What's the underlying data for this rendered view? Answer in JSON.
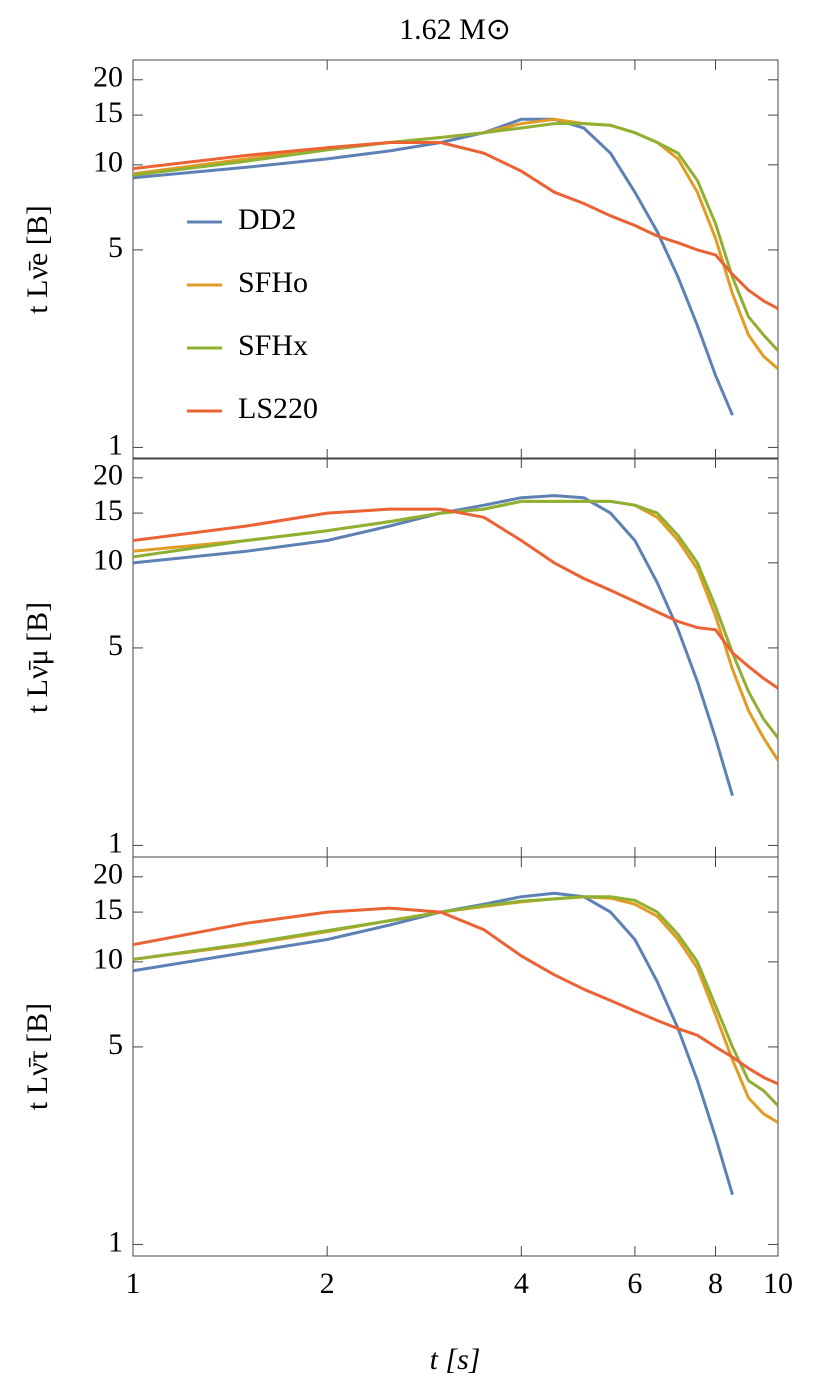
{
  "chart_data": [
    {
      "type": "line",
      "title": "1.62 M⊙",
      "ylabel": "t Lν̄e [B]",
      "log_x": true,
      "log_y": true,
      "x": [
        1,
        1.5,
        2,
        2.5,
        3,
        3.5,
        4,
        4.5,
        5,
        5.5,
        6,
        6.5,
        7,
        7.5,
        8,
        8.5,
        9,
        9.5,
        10
      ],
      "xlim": [
        1,
        10
      ],
      "xticks": [
        1,
        2,
        4,
        6,
        8,
        10
      ],
      "ylim": [
        0.91,
        23.5
      ],
      "yticks": [
        1,
        5,
        10,
        15,
        20
      ],
      "legend": "upper left",
      "series": [
        {
          "name": "DD2",
          "color": "#5e81b5",
          "values": [
            9,
            9.8,
            10.5,
            11.2,
            12,
            13,
            14.5,
            14.5,
            13.5,
            11,
            8,
            5.8,
            4,
            2.7,
            1.8,
            1.3,
            null,
            null,
            null
          ]
        },
        {
          "name": "SFHo",
          "color": "#e19c24",
          "values": [
            9.3,
            10.5,
            11.5,
            12,
            12.5,
            13,
            14,
            14.5,
            14,
            13.8,
            13,
            12,
            10.5,
            8,
            5.5,
            3.5,
            2.5,
            2.1,
            1.9
          ]
        },
        {
          "name": "SFHx",
          "color": "#8fb032",
          "values": [
            9.2,
            10.3,
            11.3,
            12,
            12.5,
            13,
            13.5,
            14,
            14,
            13.8,
            13,
            12,
            11,
            8.8,
            6.2,
            4,
            2.9,
            2.5,
            2.2
          ]
        },
        {
          "name": "LS220",
          "color": "#eb6235",
          "values": [
            9.7,
            10.8,
            11.5,
            12,
            12,
            11,
            9.5,
            8,
            7.3,
            6.6,
            6.1,
            5.6,
            5.3,
            5,
            4.8,
            4.1,
            3.6,
            3.3,
            3.1
          ]
        }
      ]
    },
    {
      "type": "line",
      "ylabel": "t Lν̄μ [B]",
      "log_x": true,
      "log_y": true,
      "x": [
        1,
        1.5,
        2,
        2.5,
        3,
        3.5,
        4,
        4.5,
        5,
        5.5,
        6,
        6.5,
        7,
        7.5,
        8,
        8.5,
        9,
        9.5,
        10
      ],
      "xlim": [
        1,
        10
      ],
      "xticks": [
        1,
        2,
        4,
        6,
        8,
        10
      ],
      "ylim": [
        0.91,
        23.5
      ],
      "yticks": [
        1,
        5,
        10,
        15,
        20
      ],
      "series": [
        {
          "color": "#5e81b5",
          "values": [
            10,
            11,
            12,
            13.5,
            15,
            16,
            17,
            17.3,
            17,
            15,
            12,
            8.5,
            5.8,
            3.8,
            2.4,
            1.5,
            null,
            null,
            null
          ]
        },
        {
          "color": "#e19c24",
          "values": [
            11,
            12,
            13,
            14,
            15,
            15.5,
            16.5,
            16.5,
            16.5,
            16.5,
            16,
            14.5,
            12,
            9.5,
            6.5,
            4.2,
            3,
            2.4,
            2
          ]
        },
        {
          "color": "#8fb032",
          "values": [
            10.5,
            12,
            13,
            14,
            15,
            15.5,
            16.5,
            16.5,
            16.5,
            16.5,
            16,
            15,
            12.5,
            10,
            7,
            4.8,
            3.5,
            2.8,
            2.4
          ]
        },
        {
          "color": "#eb6235",
          "values": [
            12,
            13.5,
            15,
            15.5,
            15.5,
            14.5,
            12,
            10,
            8.8,
            8,
            7.3,
            6.7,
            6.2,
            5.9,
            5.8,
            4.8,
            4.3,
            3.9,
            3.6
          ]
        }
      ]
    },
    {
      "type": "line",
      "ylabel": "t Lν̄τ [B]",
      "xlabel": "t [s]",
      "log_x": true,
      "log_y": true,
      "x": [
        1,
        1.5,
        2,
        2.5,
        3,
        3.5,
        4,
        4.5,
        5,
        5.5,
        6,
        6.5,
        7,
        7.5,
        8,
        8.5,
        9,
        9.5,
        10
      ],
      "xlim": [
        1,
        10
      ],
      "xticks": [
        1,
        2,
        4,
        6,
        8,
        10
      ],
      "ylim": [
        0.91,
        23.5
      ],
      "yticks": [
        1,
        5,
        10,
        15,
        20
      ],
      "series": [
        {
          "color": "#5e81b5",
          "values": [
            9.3,
            10.8,
            12,
            13.5,
            15,
            16,
            17,
            17.5,
            17,
            15,
            12,
            8.5,
            5.8,
            3.8,
            2.4,
            1.5,
            null,
            null,
            null
          ]
        },
        {
          "color": "#e19c24",
          "values": [
            10.2,
            11.5,
            12.8,
            14,
            15,
            15.7,
            16.3,
            16.7,
            17,
            16.8,
            16,
            14.5,
            12,
            9.5,
            6.5,
            4.5,
            3.3,
            2.9,
            2.7
          ]
        },
        {
          "color": "#8fb032",
          "values": [
            10.2,
            11.6,
            12.9,
            14,
            15,
            15.8,
            16.4,
            16.7,
            17,
            17,
            16.5,
            15,
            12.5,
            10,
            7,
            5,
            3.8,
            3.5,
            3.1
          ]
        },
        {
          "color": "#eb6235",
          "values": [
            11.5,
            13.7,
            15,
            15.5,
            15,
            13,
            10.5,
            9,
            8,
            7.3,
            6.7,
            6.2,
            5.8,
            5.5,
            5,
            4.6,
            4.2,
            3.9,
            3.7
          ]
        }
      ]
    }
  ]
}
